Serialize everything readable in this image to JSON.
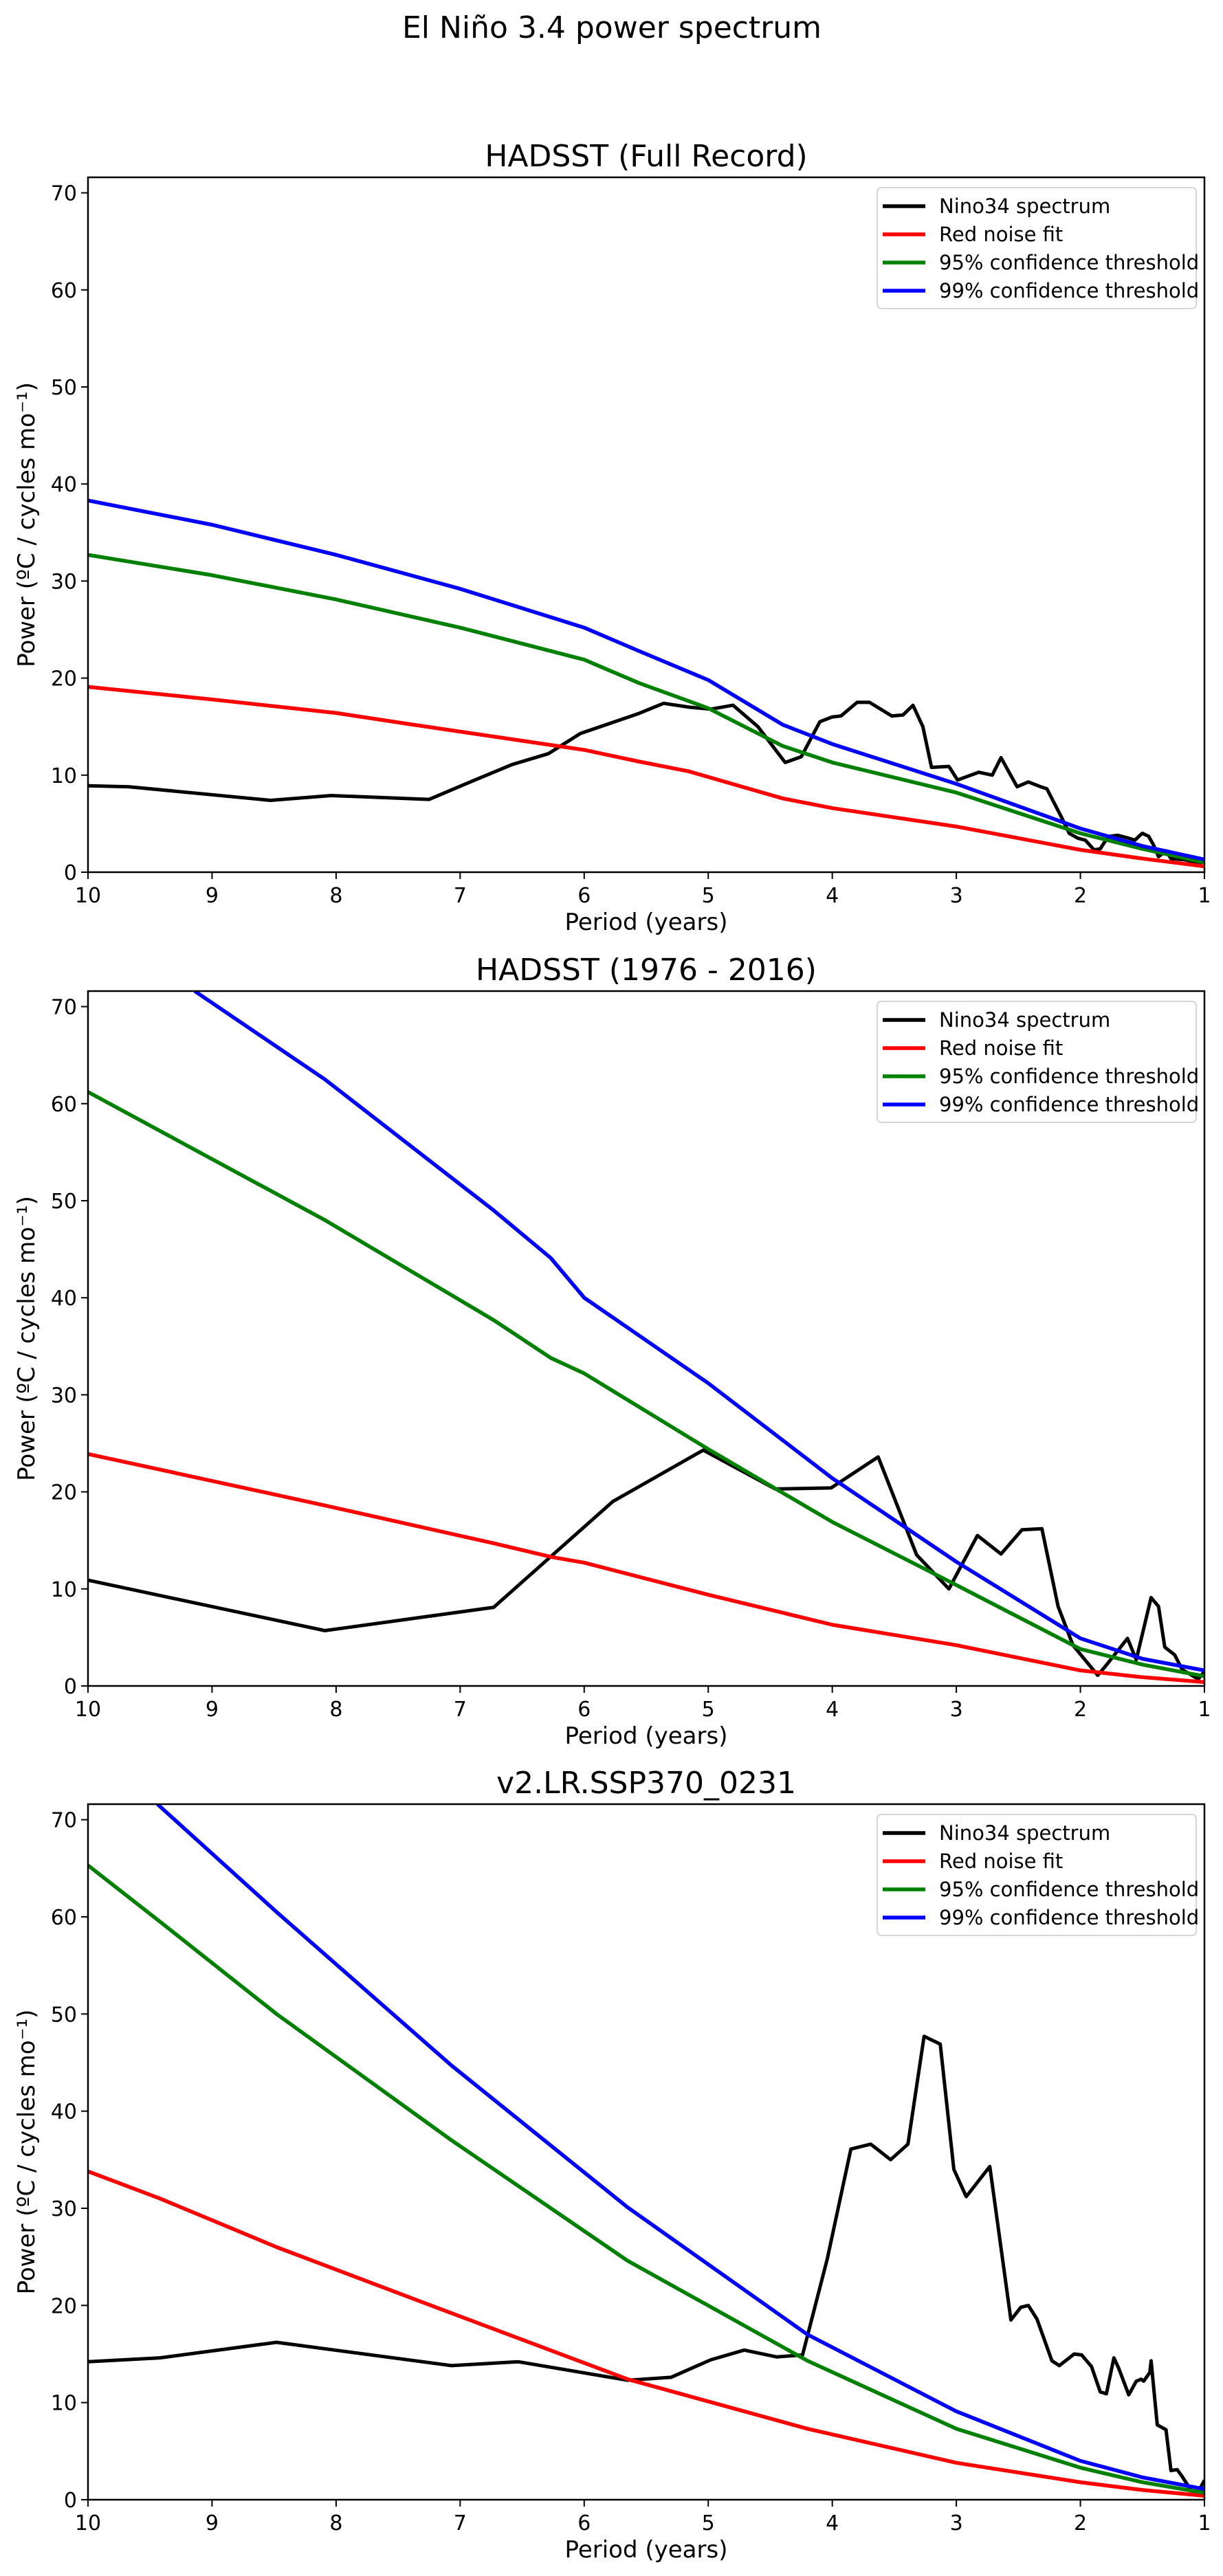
{
  "figure": {
    "suptitle": "El Niño 3.4 power spectrum"
  },
  "chart_data": [
    {
      "type": "line",
      "title": "HADSST (Full Record)",
      "xlabel": "Period (years)",
      "ylabel": "Power (ºC / cycles mo⁻¹)",
      "xlim": [
        10,
        1
      ],
      "ylim": [
        0,
        71.6
      ],
      "xticks": [
        "10",
        "9",
        "8",
        "7",
        "6",
        "5",
        "4",
        "3",
        "2",
        "1"
      ],
      "yticks": [
        "0",
        "10",
        "20",
        "30",
        "40",
        "50",
        "60",
        "70"
      ],
      "grid": false,
      "legend": "top-right",
      "series": [
        {
          "name": "Nino34 spectrum",
          "color": "#000000",
          "x": [
            10,
            9.67,
            8.53,
            8.04,
            7.25,
            6.9,
            6.58,
            6.29,
            6.03,
            5.57,
            5.36,
            5.15,
            4.98,
            4.8,
            4.6,
            4.38,
            4.25,
            4.1,
            4.0,
            3.93,
            3.8,
            3.7,
            3.52,
            3.43,
            3.35,
            3.27,
            3.2,
            3.06,
            2.99,
            2.82,
            2.71,
            2.64,
            2.51,
            2.42,
            2.32,
            2.27,
            2.15,
            2.09,
            2.02,
            1.96,
            1.89,
            1.84,
            1.81,
            1.77,
            1.7,
            1.61,
            1.56,
            1.52,
            1.5,
            1.45,
            1.41,
            1.37,
            1.31,
            1.27,
            1.17,
            1.09,
            1.02
          ],
          "y": [
            8.9,
            8.8,
            7.4,
            7.9,
            7.5,
            9.4,
            11.1,
            12.2,
            14.3,
            16.3,
            17.4,
            17.0,
            16.8,
            17.2,
            15.0,
            11.3,
            11.9,
            15.5,
            16.0,
            16.1,
            17.5,
            17.5,
            16.1,
            16.2,
            17.2,
            15.0,
            10.8,
            10.9,
            9.5,
            10.3,
            10.0,
            11.8,
            8.8,
            9.3,
            8.8,
            8.6,
            5.6,
            4.0,
            3.5,
            3.3,
            2.3,
            2.4,
            3.0,
            3.7,
            3.8,
            3.5,
            3.3,
            3.8,
            4.0,
            3.7,
            2.8,
            1.6,
            2.2,
            1.4,
            1.3,
            1.1,
            0.9
          ]
        },
        {
          "name": "Red noise fit",
          "color": "#ff0000",
          "x": [
            10,
            9,
            8,
            7.38,
            6,
            5.56,
            5.16,
            4.4,
            4,
            3,
            2,
            1.5,
            1
          ],
          "y": [
            19.1,
            17.8,
            16.4,
            15.2,
            12.6,
            11.4,
            10.4,
            7.6,
            6.6,
            4.7,
            2.3,
            1.4,
            0.6
          ]
        },
        {
          "name": "95% confidence threshold",
          "color": "#008000",
          "x": [
            10,
            9,
            8,
            7,
            6,
            5.56,
            5,
            4.4,
            4,
            3,
            2,
            1.5,
            1
          ],
          "y": [
            32.7,
            30.6,
            28.1,
            25.2,
            21.9,
            19.5,
            16.9,
            13.0,
            11.3,
            8.2,
            4.0,
            2.4,
            1.0
          ]
        },
        {
          "name": "99% confidence threshold",
          "color": "#0000ff",
          "x": [
            10,
            9,
            8,
            7,
            6,
            5.56,
            5,
            4.4,
            4,
            3,
            2,
            1.5,
            1
          ],
          "y": [
            38.3,
            35.8,
            32.7,
            29.2,
            25.2,
            22.8,
            19.8,
            15.2,
            13.2,
            9.1,
            4.5,
            2.7,
            1.3
          ]
        }
      ]
    },
    {
      "type": "line",
      "title": "HADSST (1976 - 2016)",
      "xlabel": "Period (years)",
      "ylabel": "Power (ºC / cycles mo⁻¹)",
      "xlim": [
        10,
        1
      ],
      "ylim": [
        0,
        71.6
      ],
      "xticks": [
        "10",
        "9",
        "8",
        "7",
        "6",
        "5",
        "4",
        "3",
        "2",
        "1"
      ],
      "yticks": [
        "0",
        "10",
        "20",
        "30",
        "40",
        "50",
        "60",
        "70"
      ],
      "grid": false,
      "legend": "top-right",
      "series": [
        {
          "name": "Nino34 spectrum",
          "color": "#000000",
          "x": [
            10,
            8.09,
            6.73,
            5.77,
            5.04,
            4.46,
            4.01,
            3.63,
            3.32,
            3.06,
            2.83,
            2.64,
            2.47,
            2.31,
            2.18,
            2.06,
            1.86,
            1.8,
            1.62,
            1.55,
            1.43,
            1.37,
            1.32,
            1.24,
            1.18,
            1.05,
            1.0
          ],
          "y": [
            10.9,
            5.7,
            8.1,
            19.0,
            24.3,
            20.3,
            20.4,
            23.6,
            13.5,
            10.0,
            15.5,
            13.6,
            16.1,
            16.2,
            8.2,
            4.2,
            1.1,
            2.0,
            4.9,
            2.7,
            9.1,
            8.2,
            4.0,
            3.2,
            1.7,
            0.7,
            1.5
          ]
        },
        {
          "name": "Red noise fit",
          "color": "#ff0000",
          "x": [
            10,
            8.09,
            6.73,
            6.27,
            6,
            5,
            4,
            3,
            2,
            1.5,
            1
          ],
          "y": [
            23.9,
            18.6,
            14.7,
            13.3,
            12.7,
            9.4,
            6.3,
            4.2,
            1.6,
            0.9,
            0.4
          ]
        },
        {
          "name": "95% confidence threshold",
          "color": "#008000",
          "x": [
            10,
            8.09,
            6.73,
            6.27,
            6,
            5,
            4,
            3,
            2,
            1.5,
            1
          ],
          "y": [
            61.2,
            48.0,
            37.7,
            33.8,
            32.2,
            24.4,
            16.9,
            10.4,
            3.8,
            2.2,
            1.0
          ]
        },
        {
          "name": "99% confidence threshold",
          "color": "#0000ff",
          "x": [
            9.14,
            8.09,
            6.73,
            6.27,
            6,
            5,
            4,
            3,
            2,
            1.5,
            1
          ],
          "y": [
            71.6,
            62.5,
            49.0,
            44.1,
            40.0,
            31.2,
            21.4,
            12.8,
            4.9,
            2.8,
            1.6
          ]
        }
      ]
    },
    {
      "type": "line",
      "title": "v2.LR.SSP370_0231",
      "xlabel": "Period (years)",
      "ylabel": "Power (ºC / cycles mo⁻¹)",
      "xlim": [
        10,
        1
      ],
      "ylim": [
        0,
        71.6
      ],
      "xticks": [
        "10",
        "9",
        "8",
        "7",
        "6",
        "5",
        "4",
        "3",
        "2",
        "1"
      ],
      "yticks": [
        "0",
        "10",
        "20",
        "30",
        "40",
        "50",
        "60",
        "70"
      ],
      "grid": false,
      "legend": "top-right",
      "series": [
        {
          "name": "Nino34 spectrum",
          "color": "#000000",
          "x": [
            10,
            9.42,
            8.48,
            7.07,
            6.53,
            5.65,
            5.3,
            4.98,
            4.71,
            4.45,
            4.24,
            4.04,
            3.85,
            3.69,
            3.53,
            3.39,
            3.26,
            3.13,
            3.02,
            2.92,
            2.73,
            2.56,
            2.48,
            2.42,
            2.35,
            2.23,
            2.17,
            2.05,
            1.99,
            1.91,
            1.84,
            1.79,
            1.73,
            1.69,
            1.61,
            1.55,
            1.51,
            1.49,
            1.44,
            1.43,
            1.38,
            1.31,
            1.27,
            1.22,
            1.18,
            1.1,
            1.05,
            1.0
          ],
          "y": [
            14.2,
            14.6,
            16.2,
            13.8,
            14.2,
            12.3,
            12.6,
            14.4,
            15.4,
            14.7,
            14.9,
            24.8,
            36.1,
            36.6,
            35.0,
            36.6,
            47.7,
            46.9,
            34.0,
            31.2,
            34.3,
            18.5,
            19.8,
            20.0,
            18.6,
            14.3,
            13.8,
            15.0,
            14.9,
            13.7,
            11.1,
            10.9,
            14.6,
            13.5,
            10.8,
            12.2,
            12.4,
            12.2,
            13.1,
            14.3,
            7.7,
            7.2,
            3.0,
            3.1,
            2.4,
            0.8,
            0.8,
            2.0
          ]
        },
        {
          "name": "Red noise fit",
          "color": "#ff0000",
          "x": [
            10,
            9.42,
            8.48,
            7.07,
            5.65,
            4.2,
            3.0,
            2.0,
            1.5,
            1.0
          ],
          "y": [
            33.8,
            31.0,
            26.0,
            19.2,
            12.4,
            7.3,
            3.8,
            1.8,
            1.0,
            0.4
          ]
        },
        {
          "name": "95% confidence threshold",
          "color": "#008000",
          "x": [
            10,
            9.42,
            8.48,
            7.07,
            5.65,
            4.2,
            3.0,
            2.0,
            1.5,
            1.0
          ],
          "y": [
            65.3,
            59.5,
            50.0,
            37.0,
            24.6,
            14.3,
            7.3,
            3.3,
            1.8,
            0.7
          ]
        },
        {
          "name": "99% confidence threshold",
          "color": "#0000ff",
          "x": [
            9.44,
            8.48,
            7.07,
            5.65,
            4.2,
            3.0,
            2.0,
            1.5,
            1.0
          ],
          "y": [
            71.6,
            60.5,
            44.7,
            30.1,
            17.0,
            9.1,
            4.0,
            2.3,
            1.1
          ]
        }
      ]
    }
  ]
}
